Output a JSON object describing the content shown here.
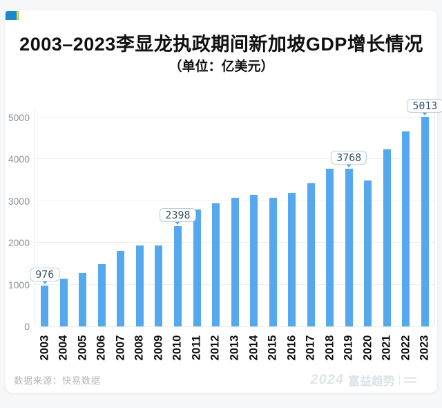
{
  "chart_data": {
    "type": "bar",
    "title": "2003–2023李显龙执政期间新加坡GDP增长情况",
    "subtitle": "（单位：亿美元）",
    "categories": [
      "2003",
      "2004",
      "2005",
      "2006",
      "2007",
      "2008",
      "2009",
      "2010",
      "2011",
      "2012",
      "2013",
      "2014",
      "2015",
      "2016",
      "2017",
      "2018",
      "2019",
      "2020",
      "2021",
      "2022",
      "2023"
    ],
    "values": [
      976,
      1150,
      1278,
      1486,
      1809,
      1936,
      1942,
      2398,
      2794,
      2951,
      3076,
      3149,
      3080,
      3188,
      3433,
      3770,
      3768,
      3495,
      4238,
      4668,
      5013
    ],
    "annotations": [
      {
        "category": "2003",
        "label": "976"
      },
      {
        "category": "2010",
        "label": "2398"
      },
      {
        "category": "2019",
        "label": "3768"
      },
      {
        "category": "2023",
        "label": "5013"
      }
    ],
    "yticks": [
      0,
      1000,
      2000,
      3000,
      4000,
      5000
    ],
    "ylim": [
      0,
      5000
    ],
    "xlabel": "",
    "ylabel": "",
    "grid": true,
    "legend": "none",
    "bar_color": "#55a8ee",
    "gridline_color": "#eeeeee",
    "annotation_text_color": "#3b566b",
    "annotation_border_color": "#bccdd8"
  },
  "header": {
    "logo": "blue-yellow-square"
  },
  "footer": {
    "source": "数据来源：快易数据",
    "watermark": {
      "year": "2024",
      "name": "富益趋势"
    }
  }
}
